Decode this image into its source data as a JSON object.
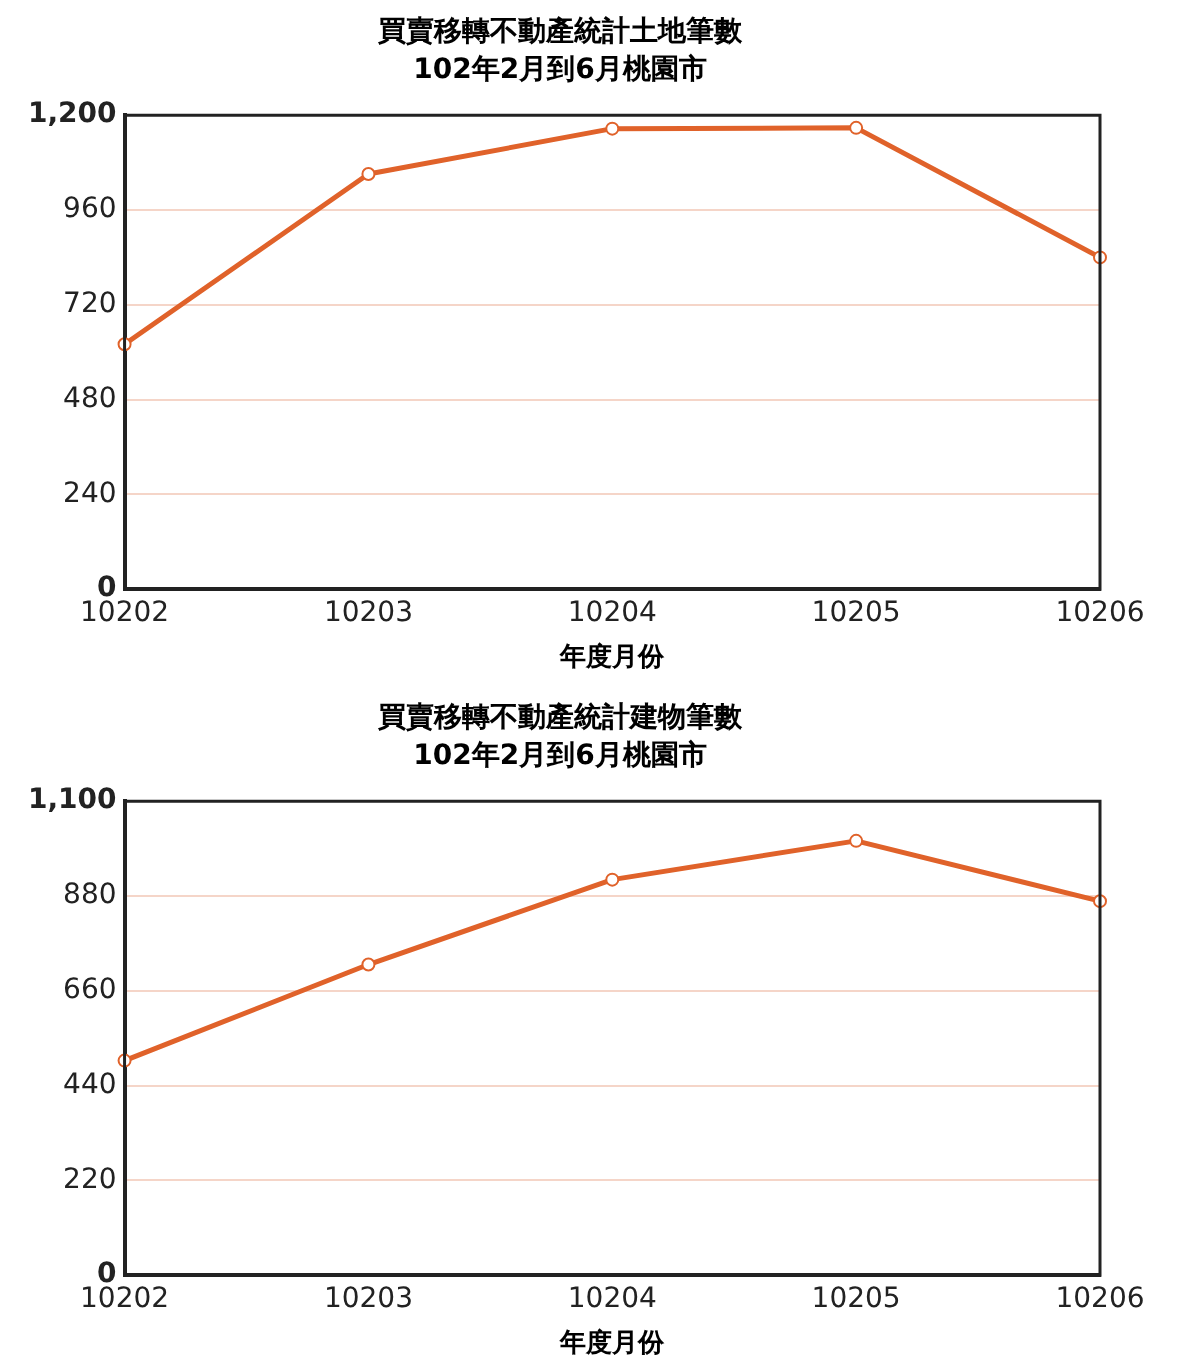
{
  "chart_data": [
    {
      "type": "line",
      "title": "買賣移轉不動產統計土地筆數",
      "subtitle": "102年2月到6月桃園市",
      "xlabel": "年度月份",
      "categories": [
        "10202",
        "10203",
        "10204",
        "10205",
        "10206"
      ],
      "series": [
        {
          "color": "#e0622a",
          "values": [
            620,
            1051,
            1166,
            1168,
            840
          ]
        }
      ],
      "ylim": [
        0,
        1200
      ],
      "yticks": [
        0,
        240,
        480,
        720,
        960,
        {
          "value": 1200,
          "label": "1,200"
        }
      ],
      "grid": "y",
      "legend": false,
      "marker": "circle",
      "line_style": "solid"
    },
    {
      "type": "line",
      "title": "買賣移轉不動產統計建物筆數",
      "subtitle": "102年2月到6月桃園市",
      "xlabel": "年度月份",
      "categories": [
        "10202",
        "10203",
        "10204",
        "10205",
        "10206"
      ],
      "series": [
        {
          "color": "#e0622a",
          "values": [
            498,
            721,
            918,
            1008,
            868
          ]
        }
      ],
      "ylim": [
        0,
        1100
      ],
      "yticks": [
        0,
        220,
        440,
        660,
        880,
        {
          "value": 1100,
          "label": "1,100"
        }
      ],
      "grid": "y",
      "legend": false,
      "marker": "circle",
      "line_style": "solid"
    }
  ]
}
